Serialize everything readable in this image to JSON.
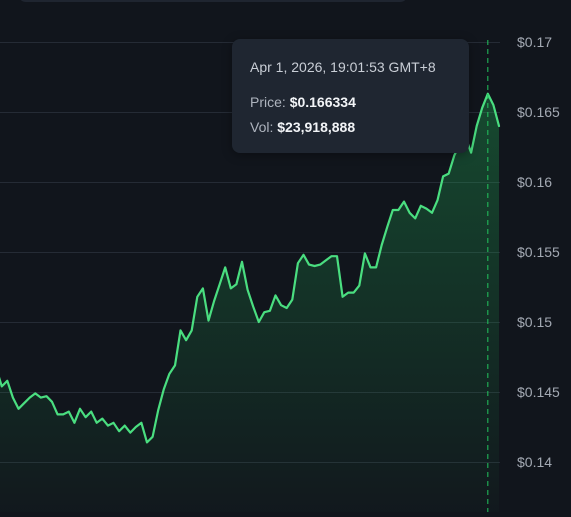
{
  "chart_data": {
    "type": "area",
    "title": "",
    "xlabel": "",
    "ylabel": "",
    "ylim": [
      0.1365,
      0.1715
    ],
    "y_ticks": [
      0.14,
      0.145,
      0.15,
      0.155,
      0.16,
      0.165,
      0.17
    ],
    "y_tick_labels": [
      "$0.14",
      "$0.145",
      "$0.15",
      "$0.155",
      "$0.16",
      "$0.165",
      "$0.17"
    ],
    "y_axis_position": "right",
    "grid": true,
    "legend": "none",
    "series": [
      {
        "color": "#4ade80",
        "values": [
          0.1466,
          0.1462,
          0.1467,
          0.1454,
          0.1458,
          0.1446,
          0.1438,
          0.1442,
          0.1446,
          0.1449,
          0.1446,
          0.1447,
          0.1443,
          0.1434,
          0.1434,
          0.1436,
          0.1428,
          0.1438,
          0.1432,
          0.1436,
          0.1428,
          0.1431,
          0.1426,
          0.1428,
          0.1422,
          0.1426,
          0.1421,
          0.1425,
          0.1428,
          0.1414,
          0.1418,
          0.1437,
          0.1452,
          0.1463,
          0.1469,
          0.1494,
          0.1487,
          0.1494,
          0.1518,
          0.1524,
          0.1501,
          0.1515,
          0.1527,
          0.1539,
          0.1524,
          0.1527,
          0.1543,
          0.1523,
          0.1511,
          0.15,
          0.1507,
          0.1508,
          0.1519,
          0.1512,
          0.151,
          0.1516,
          0.1542,
          0.1548,
          0.1541,
          0.154,
          0.1541,
          0.1544,
          0.1547,
          0.1547,
          0.1518,
          0.1521,
          0.1521,
          0.1526,
          0.1549,
          0.1539,
          0.1539,
          0.1555,
          0.1568,
          0.158,
          0.158,
          0.1586,
          0.1578,
          0.1574,
          0.1583,
          0.1581,
          0.1578,
          0.1587,
          0.1604,
          0.1606,
          0.1619,
          0.1627,
          0.1632,
          0.1621,
          0.164,
          0.1653,
          0.1663,
          0.1655,
          0.164
        ]
      }
    ]
  },
  "crosshair": {
    "value_index": 90,
    "color": "#22c55e"
  },
  "tooltip": {
    "time": "Apr 1, 2026, 19:01:53 GMT+8",
    "price_label": "Price:",
    "price_value": "$0.166334",
    "vol_label": "Vol:",
    "vol_value": "$23,918,888"
  },
  "colors": {
    "background": "#11151c",
    "grid": "#252b35",
    "axis_text": "#a3a9b3",
    "line": "#4ade80"
  }
}
